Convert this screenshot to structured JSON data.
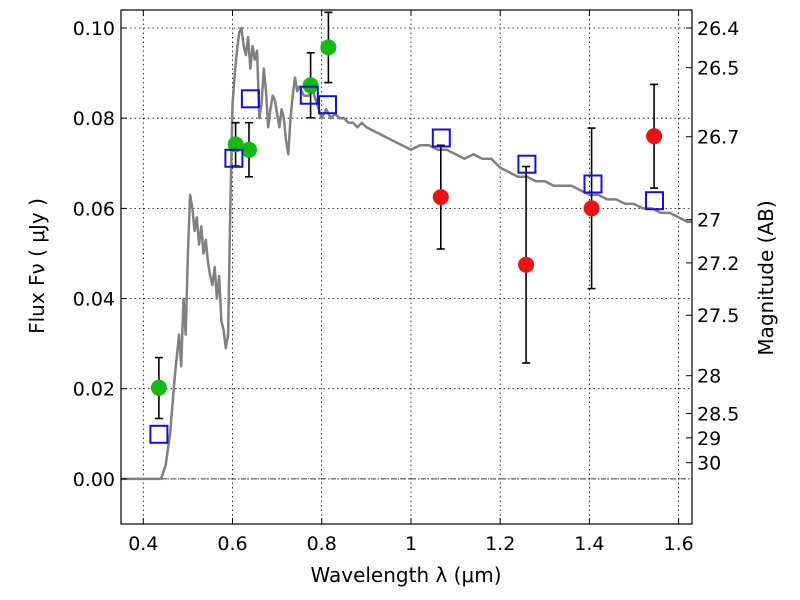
{
  "chart_data": {
    "type": "scatter",
    "title": "",
    "xlabel": "Wavelength  λ (μm)",
    "ylabel": "Flux  Fν  ( μJy )",
    "y2label": "Magnitude (AB)",
    "xlim": [
      0.35,
      1.63
    ],
    "ylim": [
      -0.01,
      0.104
    ],
    "grid": true,
    "x_ticks": [
      0.4,
      0.6,
      0.8,
      1.0,
      1.2,
      1.4,
      1.6
    ],
    "x_tick_labels": [
      "0.4",
      "0.6",
      "0.8",
      "1",
      "1.2",
      "1.4",
      "1.6"
    ],
    "y_ticks": [
      0.0,
      0.02,
      0.04,
      0.06,
      0.08,
      0.1
    ],
    "y_tick_labels": [
      "0.00",
      "0.02",
      "0.04",
      "0.06",
      "0.08",
      "0.10"
    ],
    "y2_ticks": [
      {
        "label": "26.4",
        "flux": 0.1
      },
      {
        "label": "26.5",
        "flux": 0.0912
      },
      {
        "label": "26.7",
        "flux": 0.0759
      },
      {
        "label": "27",
        "flux": 0.0575
      },
      {
        "label": "27.2",
        "flux": 0.0479
      },
      {
        "label": "27.5",
        "flux": 0.0363
      },
      {
        "label": "28",
        "flux": 0.0229
      },
      {
        "label": "28.5",
        "flux": 0.0145
      },
      {
        "label": "29",
        "flux": 0.0091
      },
      {
        "label": "30",
        "flux": 0.0036
      }
    ],
    "colors": {
      "model": "#808080",
      "green": "#11bb11",
      "red": "#ee1111",
      "blue": "#1111dd",
      "error_bar": "#000000"
    },
    "series": [
      {
        "style": "model-line",
        "x": [
          0.35,
          0.43,
          0.44,
          0.45,
          0.46,
          0.47,
          0.48,
          0.485,
          0.49,
          0.495,
          0.5,
          0.505,
          0.51,
          0.515,
          0.52,
          0.525,
          0.53,
          0.535,
          0.54,
          0.545,
          0.55,
          0.555,
          0.56,
          0.565,
          0.57,
          0.575,
          0.58,
          0.585,
          0.59,
          0.595,
          0.6,
          0.605,
          0.61,
          0.615,
          0.62,
          0.625,
          0.63,
          0.635,
          0.64,
          0.645,
          0.65,
          0.655,
          0.66,
          0.665,
          0.67,
          0.675,
          0.68,
          0.685,
          0.69,
          0.695,
          0.7,
          0.705,
          0.71,
          0.715,
          0.72,
          0.725,
          0.73,
          0.735,
          0.74,
          0.745,
          0.75,
          0.76,
          0.77,
          0.78,
          0.79,
          0.8,
          0.81,
          0.82,
          0.83,
          0.84,
          0.85,
          0.86,
          0.87,
          0.88,
          0.89,
          0.9,
          0.92,
          0.94,
          0.96,
          0.98,
          1.0,
          1.02,
          1.04,
          1.06,
          1.08,
          1.1,
          1.12,
          1.14,
          1.16,
          1.18,
          1.2,
          1.22,
          1.24,
          1.26,
          1.28,
          1.3,
          1.32,
          1.34,
          1.36,
          1.38,
          1.4,
          1.42,
          1.44,
          1.46,
          1.48,
          1.5,
          1.52,
          1.54,
          1.56,
          1.58,
          1.6,
          1.62,
          1.63
        ],
        "y": [
          0.0,
          0.0,
          0.0,
          0.003,
          0.01,
          0.022,
          0.032,
          0.025,
          0.04,
          0.032,
          0.05,
          0.063,
          0.06,
          0.055,
          0.058,
          0.052,
          0.056,
          0.05,
          0.053,
          0.048,
          0.045,
          0.043,
          0.047,
          0.04,
          0.045,
          0.035,
          0.033,
          0.029,
          0.032,
          0.06,
          0.083,
          0.09,
          0.095,
          0.099,
          0.1,
          0.096,
          0.094,
          0.098,
          0.091,
          0.096,
          0.093,
          0.095,
          0.08,
          0.083,
          0.091,
          0.086,
          0.078,
          0.082,
          0.085,
          0.084,
          0.081,
          0.078,
          0.082,
          0.08,
          0.075,
          0.072,
          0.08,
          0.085,
          0.089,
          0.086,
          0.087,
          0.085,
          0.085,
          0.086,
          0.083,
          0.08,
          0.082,
          0.08,
          0.081,
          0.08,
          0.08,
          0.079,
          0.079,
          0.078,
          0.079,
          0.078,
          0.077,
          0.076,
          0.075,
          0.074,
          0.073,
          0.074,
          0.074,
          0.073,
          0.073,
          0.072,
          0.071,
          0.072,
          0.071,
          0.071,
          0.069,
          0.068,
          0.067,
          0.067,
          0.066,
          0.066,
          0.065,
          0.065,
          0.065,
          0.064,
          0.063,
          0.063,
          0.062,
          0.062,
          0.061,
          0.061,
          0.06,
          0.06,
          0.059,
          0.059,
          0.058,
          0.057,
          0.057
        ]
      },
      {
        "style": "green-circles",
        "x": [
          0.435,
          0.607,
          0.637,
          0.775,
          0.815
        ],
        "y": [
          0.0202,
          0.0742,
          0.073,
          0.0873,
          0.0957
        ],
        "y_err": [
          [
            0.0068,
            0.0067
          ],
          [
            0.0048,
            0.0048
          ],
          [
            0.006,
            0.006
          ],
          [
            0.0072,
            0.0072
          ],
          [
            0.0078,
            0.0078
          ]
        ]
      },
      {
        "style": "red-circles",
        "x": [
          1.067,
          1.258,
          1.405,
          1.545
        ],
        "y": [
          0.0625,
          0.0475,
          0.06,
          0.076
        ],
        "y_err": [
          [
            0.0115,
            0.0115
          ],
          [
            0.0218,
            0.0218
          ],
          [
            0.0178,
            0.0178
          ],
          [
            0.0115,
            0.0115
          ]
        ]
      },
      {
        "style": "blue-squares",
        "x": [
          0.435,
          0.603,
          0.64,
          0.772,
          0.813,
          1.068,
          1.26,
          1.408,
          1.546
        ],
        "y": [
          0.0099,
          0.0711,
          0.0843,
          0.0851,
          0.083,
          0.0756,
          0.0698,
          0.0654,
          0.0617
        ]
      }
    ]
  }
}
